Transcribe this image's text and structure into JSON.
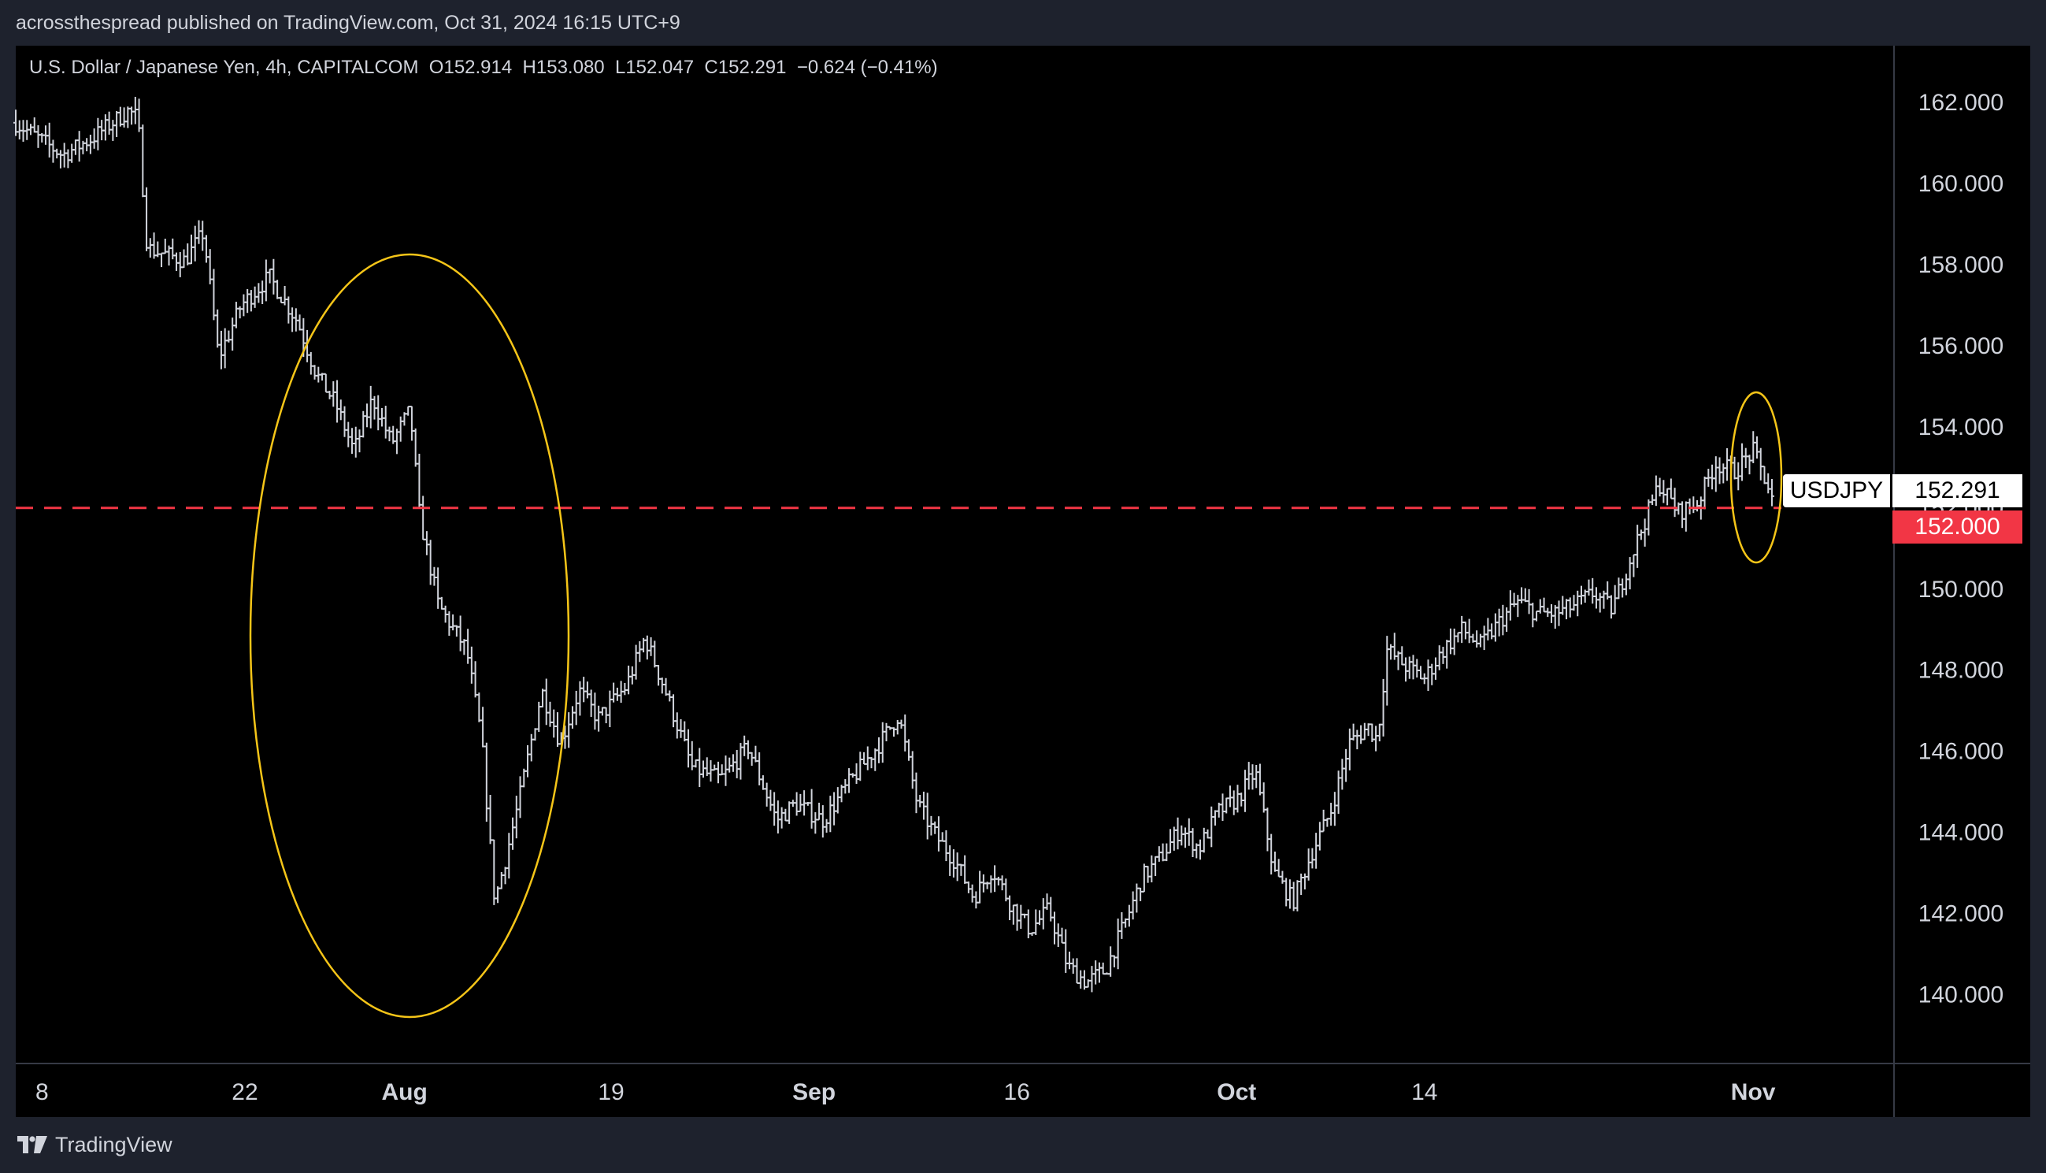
{
  "header": {
    "publisher_line": "acrossthespread published on TradingView.com, Oct 31, 2024 16:15 UTC+9"
  },
  "footer": {
    "brand": "TradingView"
  },
  "chart_data": {
    "type": "bar",
    "title": "U.S. Dollar / Japanese Yen, 4h, CAPITALCOM  O152.914  H153.080  L152.047  C152.291  −0.624 (−0.41%)",
    "symbol_badge": "USDJPY",
    "last_price_label": "152.291",
    "level_label": "152.000",
    "last_price": 152.291,
    "horizontal_level": 152.0,
    "ylim": [
      138.3,
      163.4
    ],
    "y_ticks": [
      {
        "value": 162,
        "label": "162.000"
      },
      {
        "value": 160,
        "label": "160.000"
      },
      {
        "value": 158,
        "label": "158.000"
      },
      {
        "value": 156,
        "label": "156.000"
      },
      {
        "value": 154,
        "label": "154.000"
      },
      {
        "value": 152,
        "label": "152.000"
      },
      {
        "value": 150,
        "label": "150.000"
      },
      {
        "value": 148,
        "label": "148.000"
      },
      {
        "value": 146,
        "label": "146.000"
      },
      {
        "value": 144,
        "label": "144.000"
      },
      {
        "value": 142,
        "label": "142.000"
      },
      {
        "value": 140,
        "label": "140.000"
      }
    ],
    "x_ticks": [
      {
        "label": "8",
        "bold": false
      },
      {
        "label": "22",
        "bold": false
      },
      {
        "label": "Aug",
        "bold": true
      },
      {
        "label": "19",
        "bold": false
      },
      {
        "label": "Sep",
        "bold": true
      },
      {
        "label": "16",
        "bold": false
      },
      {
        "label": "Oct",
        "bold": true
      },
      {
        "label": "14",
        "bold": false
      },
      {
        "label": "Nov",
        "bold": true
      }
    ],
    "price_path": [
      [
        0.0,
        161.5
      ],
      [
        0.025,
        160.7
      ],
      [
        0.04,
        161.1
      ],
      [
        0.06,
        161.8
      ],
      [
        0.065,
        161.6
      ],
      [
        0.07,
        158.4
      ],
      [
        0.09,
        158.1
      ],
      [
        0.1,
        158.8
      ],
      [
        0.108,
        155.7
      ],
      [
        0.12,
        157.0
      ],
      [
        0.135,
        157.7
      ],
      [
        0.15,
        156.6
      ],
      [
        0.16,
        155.3
      ],
      [
        0.17,
        154.6
      ],
      [
        0.18,
        153.4
      ],
      [
        0.19,
        154.7
      ],
      [
        0.2,
        153.6
      ],
      [
        0.21,
        154.4
      ],
      [
        0.215,
        151.8
      ],
      [
        0.225,
        149.6
      ],
      [
        0.24,
        148.5
      ],
      [
        0.248,
        146.3
      ],
      [
        0.255,
        142.3
      ],
      [
        0.26,
        143.2
      ],
      [
        0.268,
        144.8
      ],
      [
        0.28,
        147.5
      ],
      [
        0.29,
        146.2
      ],
      [
        0.3,
        147.5
      ],
      [
        0.31,
        146.8
      ],
      [
        0.325,
        147.6
      ],
      [
        0.335,
        148.8
      ],
      [
        0.345,
        147.6
      ],
      [
        0.36,
        145.6
      ],
      [
        0.375,
        145.3
      ],
      [
        0.39,
        146.1
      ],
      [
        0.405,
        144.3
      ],
      [
        0.415,
        144.7
      ],
      [
        0.43,
        144.3
      ],
      [
        0.445,
        145.3
      ],
      [
        0.46,
        146.2
      ],
      [
        0.47,
        146.9
      ],
      [
        0.48,
        144.7
      ],
      [
        0.49,
        143.9
      ],
      [
        0.5,
        143.3
      ],
      [
        0.51,
        142.4
      ],
      [
        0.52,
        143.1
      ],
      [
        0.53,
        142.2
      ],
      [
        0.54,
        141.6
      ],
      [
        0.55,
        142.1
      ],
      [
        0.56,
        140.7
      ],
      [
        0.57,
        140.3
      ],
      [
        0.58,
        140.6
      ],
      [
        0.59,
        141.7
      ],
      [
        0.6,
        142.9
      ],
      [
        0.61,
        143.4
      ],
      [
        0.62,
        144.1
      ],
      [
        0.63,
        143.6
      ],
      [
        0.64,
        144.5
      ],
      [
        0.65,
        144.8
      ],
      [
        0.66,
        145.5
      ],
      [
        0.67,
        143.0
      ],
      [
        0.68,
        142.3
      ],
      [
        0.69,
        143.5
      ],
      [
        0.7,
        144.5
      ],
      [
        0.71,
        146.2
      ],
      [
        0.72,
        146.6
      ],
      [
        0.725,
        146.3
      ],
      [
        0.73,
        148.5
      ],
      [
        0.74,
        148.1
      ],
      [
        0.75,
        147.8
      ],
      [
        0.76,
        148.5
      ],
      [
        0.77,
        149.0
      ],
      [
        0.78,
        148.6
      ],
      [
        0.79,
        149.2
      ],
      [
        0.8,
        149.7
      ],
      [
        0.81,
        149.4
      ],
      [
        0.82,
        149.4
      ],
      [
        0.83,
        149.6
      ],
      [
        0.84,
        149.9
      ],
      [
        0.85,
        149.5
      ],
      [
        0.86,
        150.8
      ],
      [
        0.87,
        152.0
      ],
      [
        0.875,
        152.6
      ],
      [
        0.885,
        151.9
      ],
      [
        0.895,
        152.1
      ],
      [
        0.905,
        153.1
      ],
      [
        0.915,
        152.9
      ],
      [
        0.925,
        153.4
      ],
      [
        0.935,
        152.3
      ]
    ]
  }
}
